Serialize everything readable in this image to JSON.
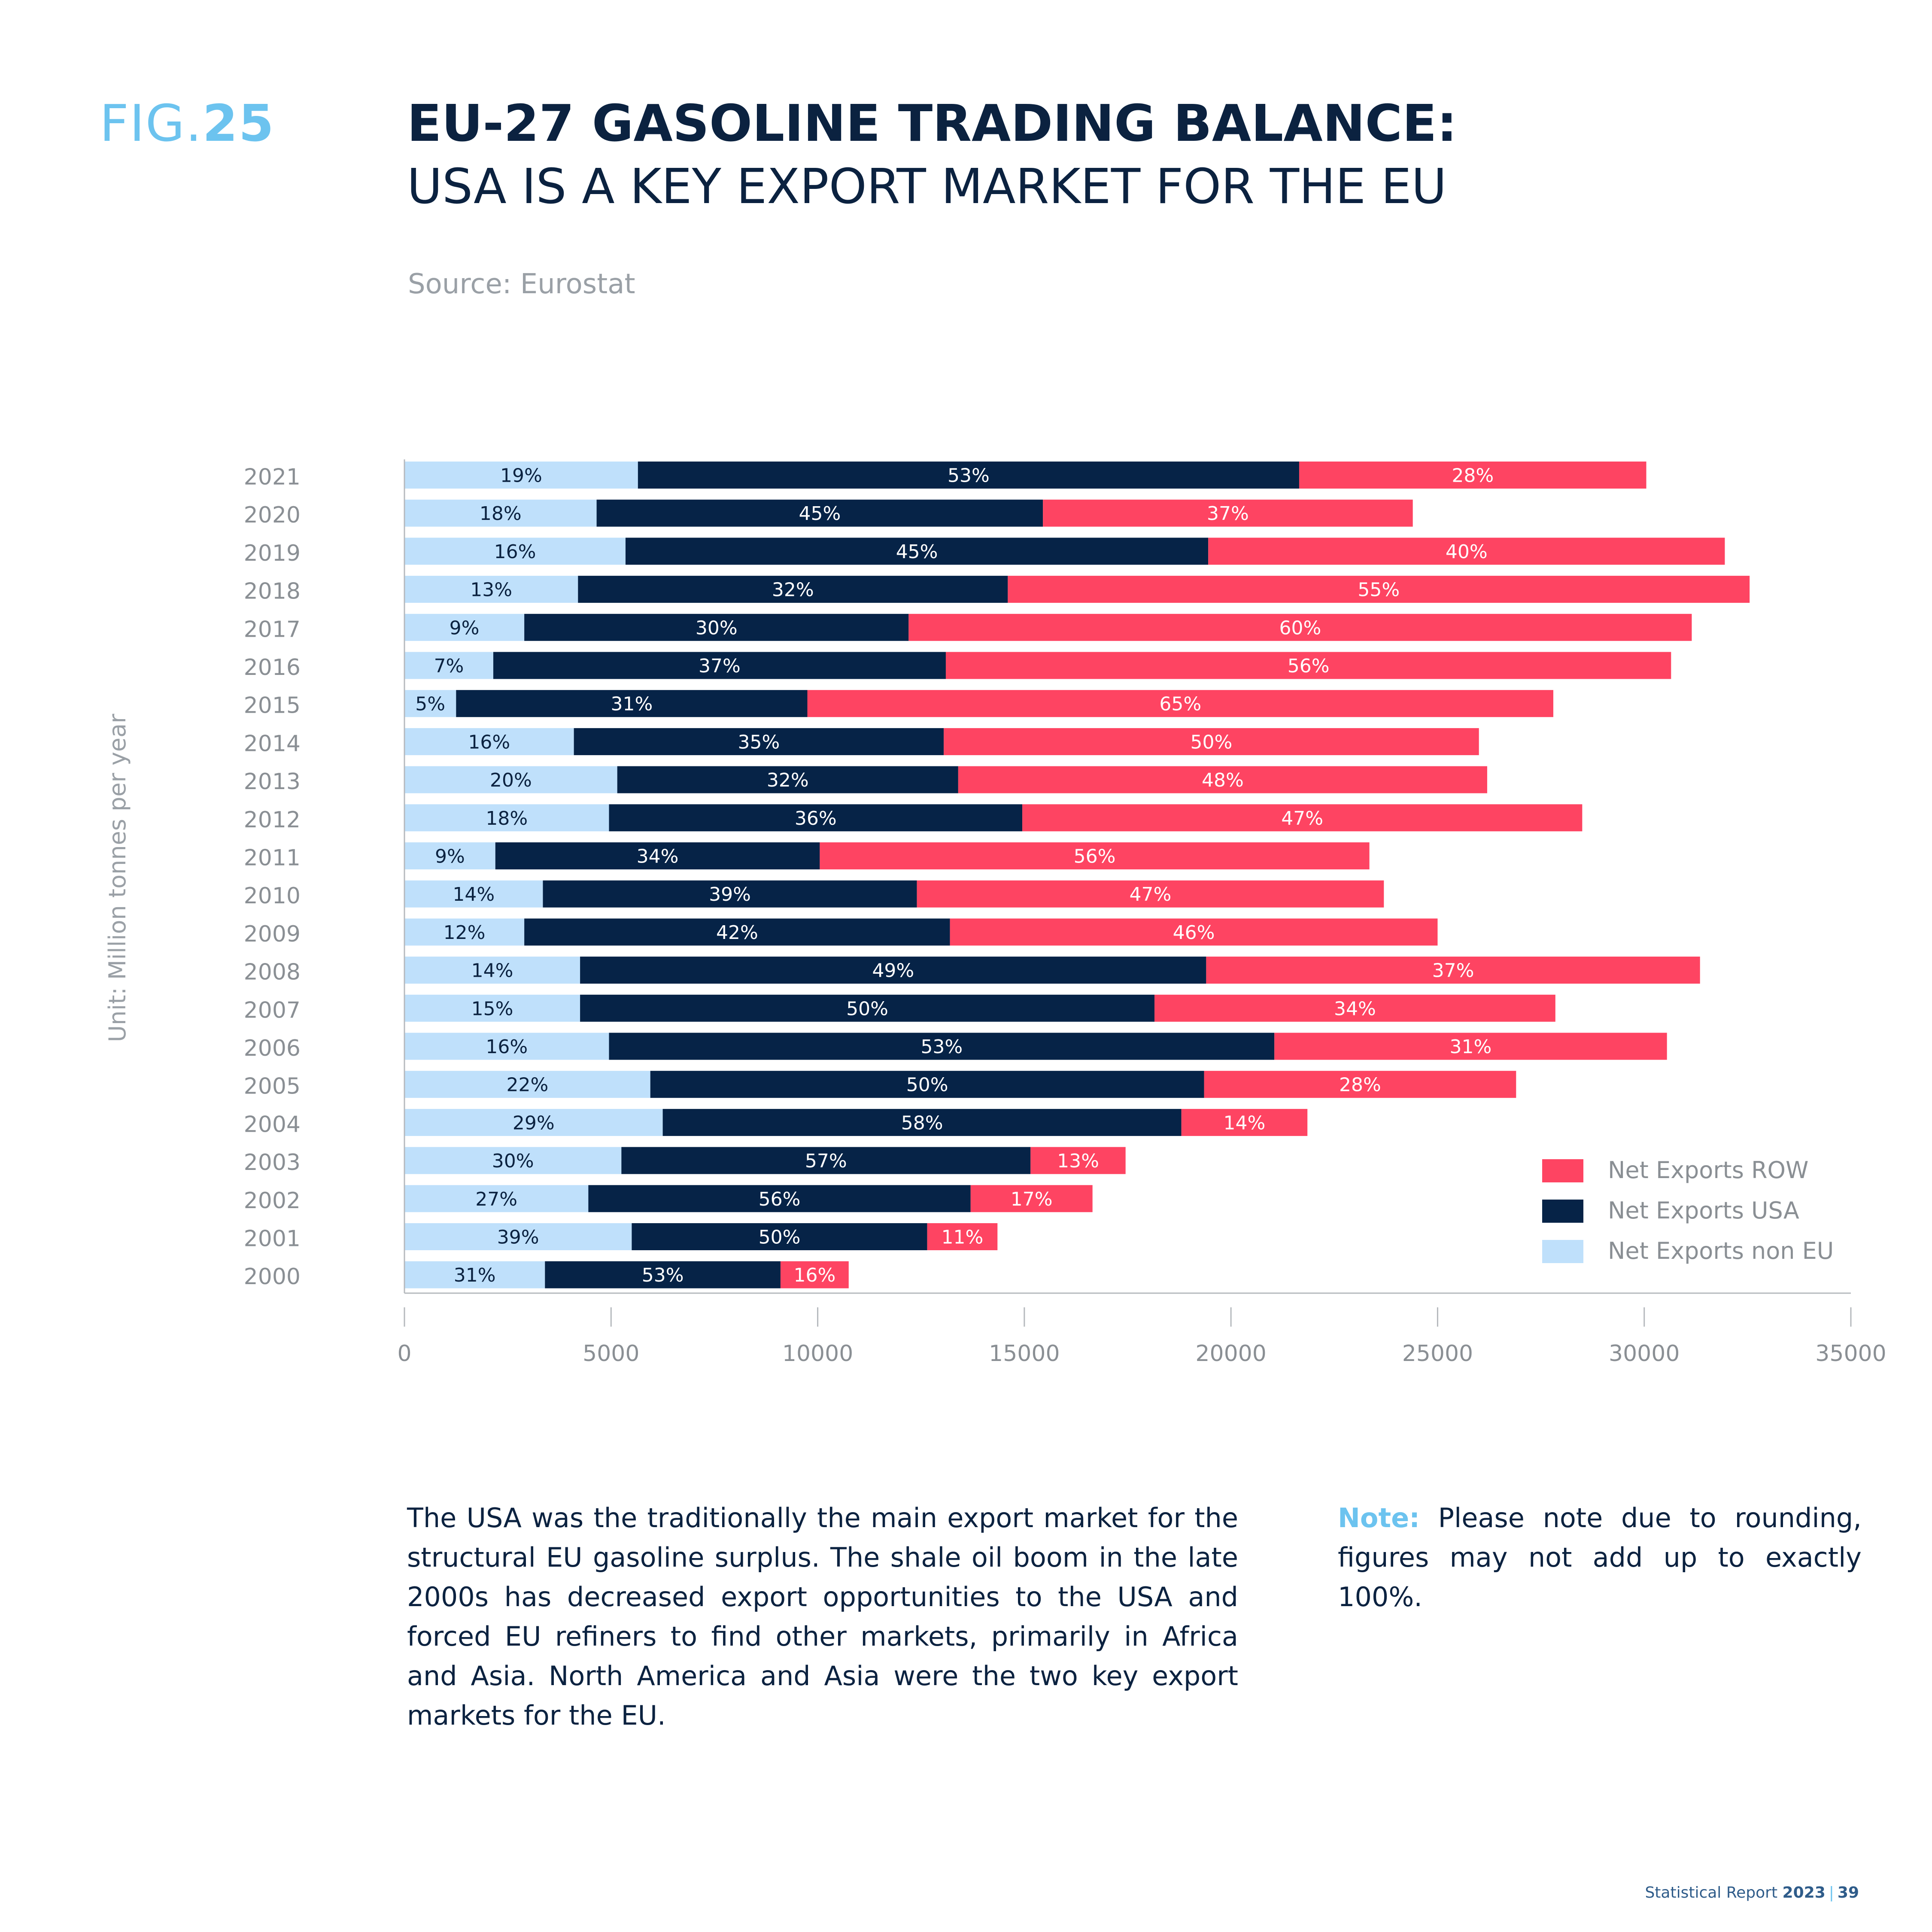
{
  "header": {
    "fig_prefix": "FIG.",
    "fig_number": "25",
    "title_bold": "EU-27 GASOLINE TRADING BALANCE:",
    "title_light": "USA IS A KEY EXPORT MARKET FOR THE EU",
    "source": "Source: Eurostat"
  },
  "body": {
    "text": "The USA was the traditionally the main export market for the structural EU gasoline surplus. The shale oil boom in the late 2000s has decreased export opportunities to the USA and forced EU refiners to find other markets, primarily in Africa and Asia. North America and Asia were the two key export markets for the EU.",
    "note_label": "Note:",
    "note_text": "Please note due to rounding, figures may not add up to exactly 100%."
  },
  "footer": {
    "report": "Statistical Report",
    "year": "2023",
    "separator": "|",
    "page": "39"
  },
  "chart_data": {
    "type": "bar",
    "orientation": "horizontal",
    "stacked": true,
    "title": "",
    "ylabel": "Unit: Million tonnes per year",
    "xlabel": "",
    "xlim": [
      0,
      35000
    ],
    "xticks": [
      0,
      5000,
      10000,
      15000,
      20000,
      25000,
      30000,
      35000
    ],
    "grid": false,
    "legend_position": "bottom-right",
    "categories": [
      "2021",
      "2020",
      "2019",
      "2018",
      "2017",
      "2016",
      "2015",
      "2014",
      "2013",
      "2012",
      "2011",
      "2010",
      "2009",
      "2008",
      "2007",
      "2006",
      "2005",
      "2004",
      "2003",
      "2002",
      "2001",
      "2000"
    ],
    "series": [
      {
        "name": "Net Exports non EU",
        "color": "#bfe0fb",
        "label_color": "#0b2240",
        "values": [
          5650,
          4650,
          5350,
          4200,
          2900,
          2150,
          1250,
          4100,
          5150,
          4950,
          2200,
          3350,
          2900,
          4250,
          4250,
          4950,
          5950,
          6250,
          5250,
          4450,
          5500,
          3400
        ],
        "labels": [
          "19%",
          "18%",
          "16%",
          "13%",
          "9%",
          "7%",
          "5%",
          "16%",
          "20%",
          "18%",
          "9%",
          "14%",
          "12%",
          "14%",
          "15%",
          "16%",
          "22%",
          "29%",
          "30%",
          "27%",
          "39%",
          "31%"
        ]
      },
      {
        "name": "Net Exports USA",
        "color": "#062347",
        "label_color": "#ffffff",
        "values": [
          16000,
          10800,
          14100,
          10400,
          9300,
          10950,
          8500,
          8950,
          8250,
          10000,
          7850,
          9050,
          10300,
          15150,
          13900,
          16100,
          13400,
          12550,
          9900,
          9250,
          7150,
          5700
        ],
        "labels": [
          "53%",
          "45%",
          "45%",
          "32%",
          "30%",
          "37%",
          "31%",
          "35%",
          "32%",
          "36%",
          "34%",
          "39%",
          "42%",
          "49%",
          "50%",
          "53%",
          "50%",
          "58%",
          "57%",
          "56%",
          "50%",
          "53%"
        ]
      },
      {
        "name": "Net Exports ROW",
        "color": "#fe4462",
        "label_color": "#ffffff",
        "values": [
          8400,
          8950,
          12500,
          17950,
          18950,
          17550,
          18050,
          12950,
          12800,
          13550,
          13300,
          11300,
          11800,
          11950,
          9700,
          9500,
          7550,
          3050,
          2300,
          2950,
          1700,
          1650
        ],
        "labels": [
          "28%",
          "37%",
          "40%",
          "55%",
          "60%",
          "56%",
          "65%",
          "50%",
          "48%",
          "47%",
          "56%",
          "47%",
          "46%",
          "37%",
          "34%",
          "31%",
          "28%",
          "14%",
          "13%",
          "17%",
          "11%",
          "16%"
        ]
      }
    ],
    "legend_order": [
      "Net Exports ROW",
      "Net Exports USA",
      "Net Exports non EU"
    ]
  }
}
